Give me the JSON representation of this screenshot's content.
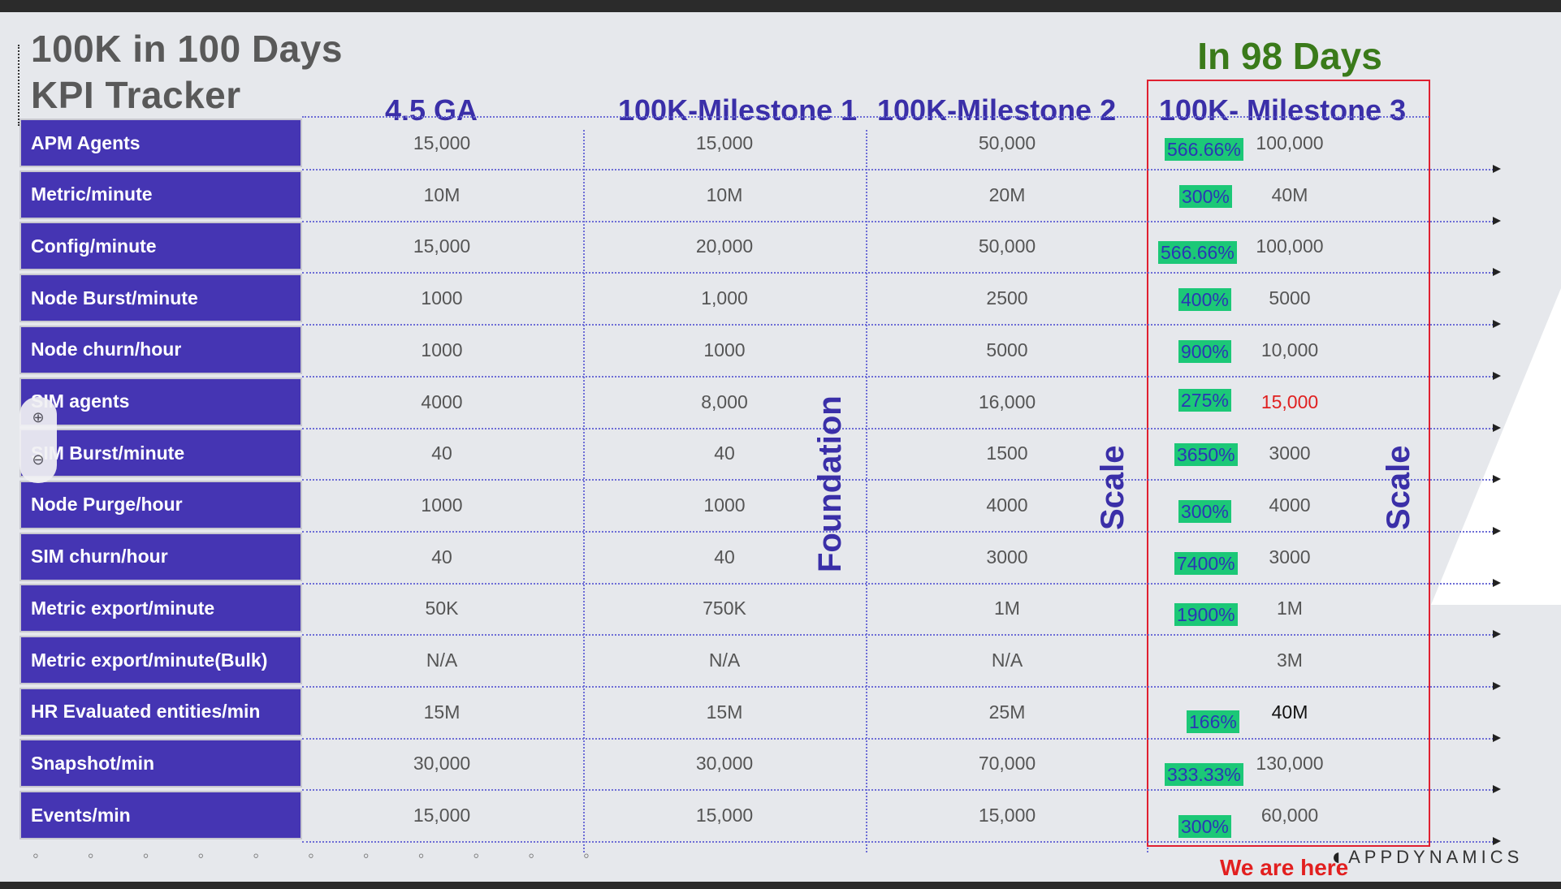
{
  "title": {
    "line1": "100K in 100 Days",
    "line2": "KPI Tracker"
  },
  "banner": "In 98 Days",
  "columns": [
    "4.5  GA",
    "100K-Milestone 1",
    "100K-Milestone 2",
    "100K- Milestone 3"
  ],
  "rows": [
    {
      "label": "APM Agents",
      "ga": "15,000",
      "m1": "15,000",
      "m2": "50,000",
      "pct": "566.66%",
      "m3": "100,000"
    },
    {
      "label": "Metric/minute",
      "ga": "10M",
      "m1": "10M",
      "m2": "20M",
      "pct": "300%",
      "m3": "40M"
    },
    {
      "label": "Config/minute",
      "ga": "15,000",
      "m1": "20,000",
      "m2": "50,000",
      "pct": "566.66%",
      "m3": "100,000"
    },
    {
      "label": "Node Burst/minute",
      "ga": "1000",
      "m1": "1,000",
      "m2": "2500",
      "pct": "400%",
      "m3": "5000"
    },
    {
      "label": "Node churn/hour",
      "ga": "1000",
      "m1": "1000",
      "m2": "5000",
      "pct": "900%",
      "m3": "10,000"
    },
    {
      "label": "SIM agents",
      "ga": "4000",
      "m1": "8,000",
      "m2": "16,000",
      "pct": "275%",
      "m3": "15,000"
    },
    {
      "label": "SIM Burst/minute",
      "ga": "40",
      "m1": "40",
      "m2": "1500",
      "pct": "3650%",
      "m3": "3000"
    },
    {
      "label": "Node Purge/hour",
      "ga": "1000",
      "m1": "1000",
      "m2": "4000",
      "pct": "300%",
      "m3": "4000"
    },
    {
      "label": "SIM churn/hour",
      "ga": "40",
      "m1": "40",
      "m2": "3000",
      "pct": "7400%",
      "m3": "3000"
    },
    {
      "label": "Metric export/minute",
      "ga": "50K",
      "m1": "750K",
      "m2": "1M",
      "pct": "1900%",
      "m3": "1M"
    },
    {
      "label": "Metric export/minute(Bulk)",
      "ga": "N/A",
      "m1": "N/A",
      "m2": "N/A",
      "pct": "",
      "m3": "3M"
    },
    {
      "label": "HR Evaluated entities/min",
      "ga": "15M",
      "m1": "15M",
      "m2": "25M",
      "pct": "166%",
      "m3": "40M"
    },
    {
      "label": "Snapshot/min",
      "ga": "30,000",
      "m1": "30,000",
      "m2": "70,000",
      "pct": "333.33%",
      "m3": "130,000"
    },
    {
      "label": "Events/min",
      "ga": "15,000",
      "m1": "15,000",
      "m2": "15,000",
      "pct": "300%",
      "m3": "60,000"
    }
  ],
  "vertical_labels": {
    "foundation": "Foundation",
    "scale_m2": "Scale",
    "scale_m3": "Scale"
  },
  "footer": {
    "we_are_here": "We are here",
    "logo": "APPDYNAMICS"
  },
  "zoom": {
    "in_icon": "zoom-in-icon",
    "out_icon": "zoom-out-icon"
  },
  "colors": {
    "row_label_bg": "#4535b3",
    "header_text": "#3a2fa8",
    "banner": "#3a7a1a",
    "pct_bg": "#1cc877",
    "highlight_red": "#e02020"
  }
}
